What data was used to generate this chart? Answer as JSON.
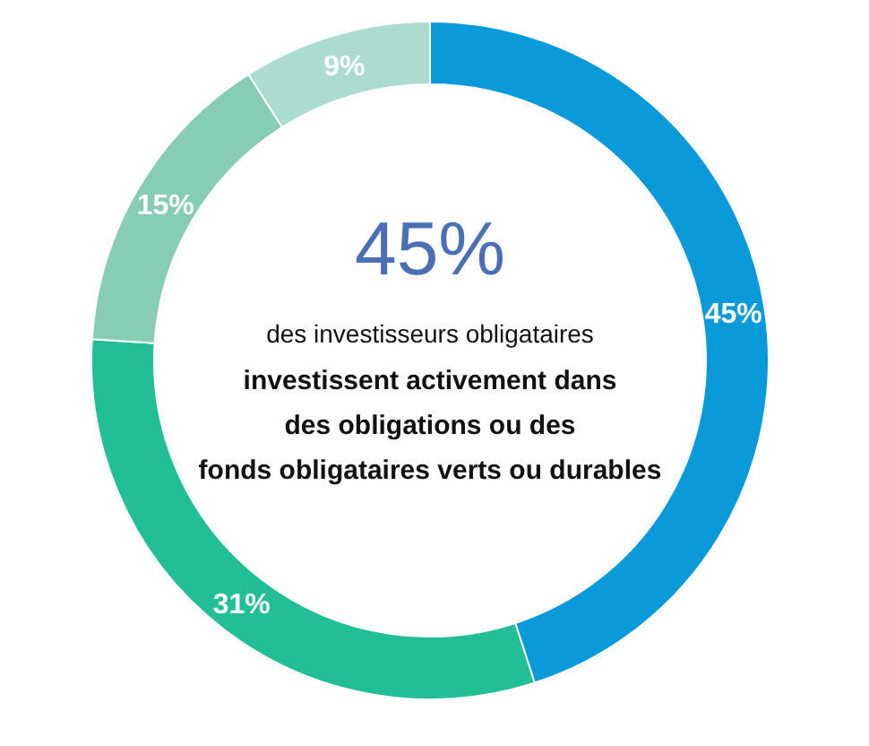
{
  "chart_data": {
    "type": "donut",
    "title": "45%",
    "subtitle": "des investisseurs obligataires",
    "annotations": [
      "investissent activement dans",
      "des obligations ou des",
      "fonds obligataires verts ou durables"
    ],
    "categories": [
      null,
      null,
      null,
      null
    ],
    "values": [
      45,
      31,
      15,
      9
    ],
    "colors": [
      "#0a9ad9",
      "#22bf97",
      "#87cdb6",
      "#acdccf"
    ],
    "value_labels": [
      "45%",
      "31%",
      "15%",
      "9%"
    ]
  }
}
